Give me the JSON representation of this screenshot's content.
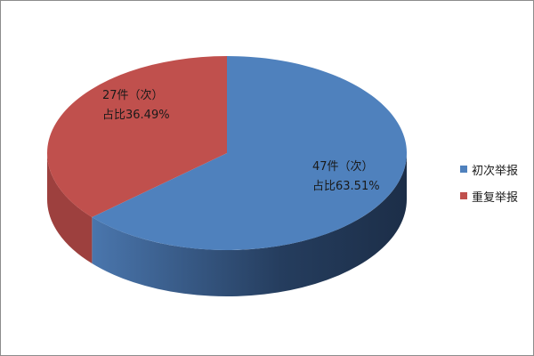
{
  "chart_data": {
    "type": "pie",
    "style": "3d",
    "categories": [
      "初次举报",
      "重复举报"
    ],
    "values": [
      47,
      27
    ],
    "percentages": [
      63.51,
      36.49
    ],
    "colors": [
      "#4f81bd",
      "#c0504d"
    ],
    "data_labels": [
      {
        "count": "47件（次）",
        "share": "占比63.51%"
      },
      {
        "count": "27件（次）",
        "share": "占比36.49%"
      }
    ],
    "legend": {
      "position": "right",
      "items": [
        "初次举报",
        "重复举报"
      ]
    }
  }
}
